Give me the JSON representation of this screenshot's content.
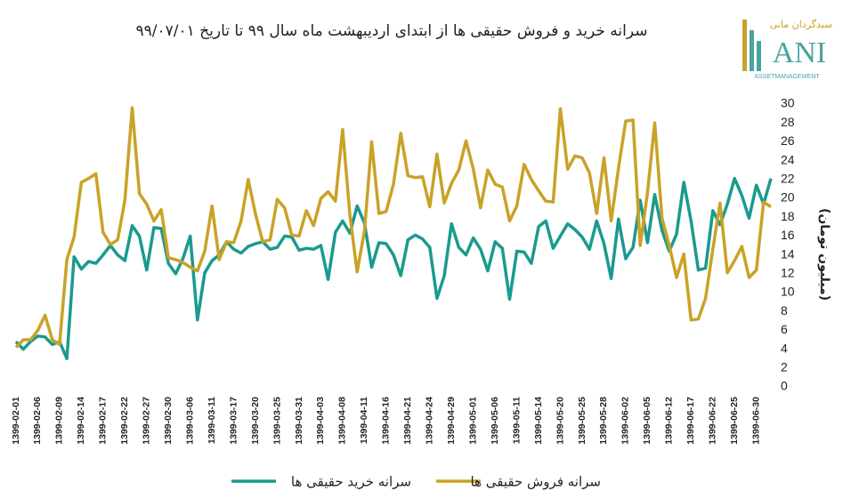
{
  "chart_data": {
    "type": "line",
    "title": "سرانه خرید و فروش حقیقی ها از ابتدای اردیبهشت ماه سال ۹۹ تا تاریخ ۹۹/۰۷/۰۱",
    "y_label": "(میلیون تومان)",
    "logo": {
      "fa": "سبدگردان مانی",
      "name": "ANI",
      "sub": "ASSETMANAGEMENT"
    },
    "categories": [
      "1399-02-01",
      null,
      null,
      "1399-02-06",
      null,
      null,
      "1399-02-09",
      null,
      null,
      "1399-02-14",
      null,
      null,
      "1399-02-17",
      null,
      null,
      "1399-02-22",
      null,
      null,
      "1399-02-27",
      null,
      null,
      "1399-02-30",
      null,
      null,
      "1399-03-06",
      null,
      null,
      "1399-03-11",
      null,
      null,
      "1399-03-17",
      null,
      null,
      "1399-03-20",
      null,
      null,
      "1399-03-25",
      null,
      null,
      "1399-03-31",
      null,
      null,
      "1399-04-03",
      null,
      null,
      "1399-04-08",
      null,
      null,
      "1399-04-11",
      null,
      null,
      "1399-04-16",
      null,
      null,
      "1399-04-21",
      null,
      null,
      "1399-04-24",
      null,
      null,
      "1399-04-29",
      null,
      null,
      "1399-05-01",
      null,
      null,
      "1399-05-06",
      null,
      null,
      "1399-05-11",
      null,
      null,
      "1399-05-14",
      null,
      null,
      "1399-05-20",
      null,
      null,
      "1399-05-25",
      null,
      null,
      "1399-05-28",
      null,
      null,
      "1399-06-02",
      null,
      null,
      "1399-06-05",
      null,
      null,
      "1399-06-12",
      null,
      null,
      "1399-06-17",
      null,
      null,
      "1399-06-22",
      null,
      null,
      "1399-06-25",
      null,
      null,
      "1399-06-30",
      null,
      null
    ],
    "series": [
      {
        "name": "سرانه خرید حقیقی ها",
        "color": "#1a9a8f",
        "values": [
          4.8,
          4.0,
          4.8,
          5.4,
          5.3,
          4.5,
          4.8,
          3.0,
          13.8,
          12.5,
          13.3,
          13.1,
          14,
          15,
          14,
          13.4,
          17.1,
          16,
          12.4,
          16.9,
          16.8,
          13.1,
          12,
          13.6,
          16,
          7.1,
          12.1,
          13.4,
          14,
          15.4,
          14.6,
          14.2,
          14.9,
          15.2,
          15.4,
          14.6,
          14.8,
          16,
          15.9,
          14.5,
          14.7,
          14.6,
          15,
          11.4,
          16.4,
          17.6,
          16.3,
          19.2,
          17.4,
          12.7,
          15.3,
          15.2,
          14,
          11.8,
          15.6,
          16.1,
          15.7,
          14.8,
          9.4,
          11.8,
          17.3,
          14.8,
          14,
          15.8,
          14.6,
          12.3,
          15.4,
          14.7,
          9.3,
          14.4,
          14.3,
          13.1,
          17,
          17.6,
          14.7,
          16,
          17.3,
          16.7,
          15.9,
          14.6,
          17.6,
          15.2,
          11.5,
          17.8,
          13.6,
          14.8,
          19.8,
          15.3,
          20.4,
          16.6,
          14.4,
          16.2,
          21.7,
          17.6,
          12.4,
          12.6,
          18.7,
          17.2,
          19.4,
          22.1,
          20.3,
          17.9,
          21.4,
          19.4,
          22.1
        ]
      },
      {
        "name": "سرانه فروش حقیقی ها",
        "color": "#c9a227",
        "values": [
          4.2,
          5.0,
          5.0,
          6.0,
          7.6,
          5.0,
          4.5,
          13.5,
          15.9,
          21.7,
          22.1,
          22.6,
          16.4,
          15.1,
          15.6,
          19.8,
          29.6,
          20.5,
          19.4,
          17.6,
          18.8,
          13.7,
          13.5,
          13.2,
          12.7,
          12.3,
          14.4,
          19.2,
          13.5,
          15.4,
          15.3,
          17.6,
          22,
          18.3,
          15.4,
          15.6,
          19.9,
          19,
          16.1,
          16.0,
          18.7,
          17.1,
          20,
          20.7,
          19.7,
          27.3,
          18.2,
          12.2,
          16.5,
          26,
          18.4,
          18.6,
          21.5,
          26.9,
          22.4,
          22.2,
          22.3,
          19.1,
          24.7,
          19.5,
          21.6,
          23,
          26.1,
          23.1,
          19,
          23,
          21.5,
          21.2,
          17.6,
          19.2,
          23.6,
          22,
          20.8,
          19.7,
          19.6,
          29.5,
          23.1,
          24.5,
          24.3,
          22.7,
          18.4,
          24.3,
          17.6,
          23.2,
          28.2,
          28.3,
          15,
          20.6,
          28,
          17.9,
          15,
          11.6,
          14.1,
          7.1,
          7.2,
          9.4,
          14.6,
          19.5,
          12.1,
          13.4,
          14.9,
          11.6,
          12.4,
          19.6,
          19.1
        ]
      }
    ],
    "ylim": [
      0,
      30
    ],
    "yticks": [
      0,
      2,
      4,
      6,
      8,
      10,
      12,
      14,
      16,
      18,
      20,
      22,
      24,
      26,
      28,
      30
    ],
    "grid": false
  }
}
